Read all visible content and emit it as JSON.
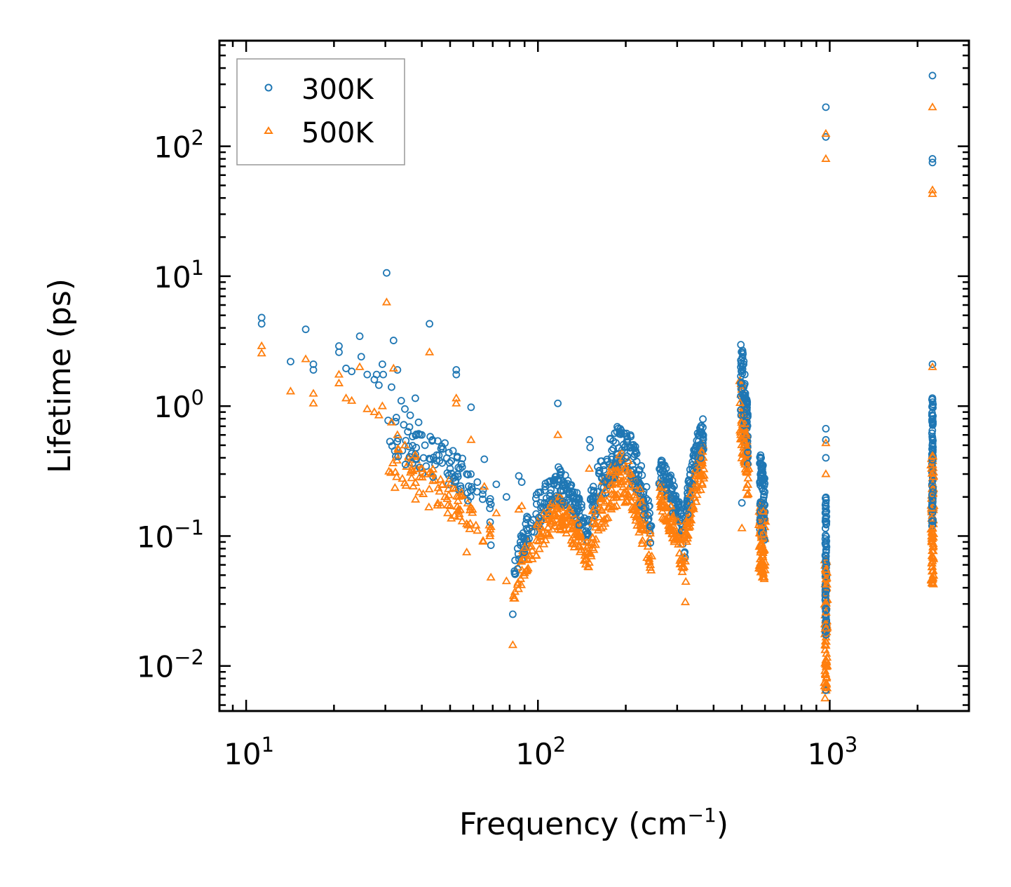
{
  "chart_data": {
    "type": "scatter",
    "title": "",
    "xlabel": "Frequency (cm",
    "xlabel_sup": "−1",
    "xlabel_close": ")",
    "ylabel": "Lifetime (ps)",
    "xscale": "log",
    "yscale": "log",
    "xlim": [
      8.1,
      3000
    ],
    "ylim": [
      0.0045,
      650
    ],
    "legend_position": "top-left",
    "x_ticks": [
      {
        "value": 10,
        "base": "10",
        "exp": "1"
      },
      {
        "value": 100,
        "base": "10",
        "exp": "2"
      },
      {
        "value": 1000,
        "base": "10",
        "exp": "3"
      }
    ],
    "y_ticks": [
      {
        "value": 0.01,
        "base": "10",
        "exp": "−2"
      },
      {
        "value": 0.1,
        "base": "10",
        "exp": "−1"
      },
      {
        "value": 1,
        "base": "10",
        "exp": "0"
      },
      {
        "value": 10,
        "base": "10",
        "exp": "1"
      },
      {
        "value": 100,
        "base": "10",
        "exp": "2"
      }
    ],
    "series": [
      {
        "name": "300K",
        "marker": "circle",
        "color": "#1f77b4",
        "points": [
          [
            11.3,
            4.8
          ],
          [
            11.3,
            4.3
          ],
          [
            14.2,
            2.2
          ],
          [
            16.0,
            3.9
          ],
          [
            17.0,
            2.1
          ],
          [
            17.0,
            1.9
          ],
          [
            20.8,
            2.9
          ],
          [
            20.8,
            2.6
          ],
          [
            22.0,
            1.95
          ],
          [
            23.0,
            1.85
          ],
          [
            24.5,
            3.45
          ],
          [
            24.8,
            2.4
          ],
          [
            26.0,
            1.75
          ],
          [
            27.5,
            1.6
          ],
          [
            28.0,
            1.75
          ],
          [
            28.5,
            1.45
          ],
          [
            29.3,
            2.1
          ],
          [
            29.5,
            1.75
          ],
          [
            30.3,
            10.6
          ],
          [
            31.5,
            1.4
          ],
          [
            32.0,
            3.2
          ],
          [
            33.0,
            1.9
          ],
          [
            34.0,
            1.1
          ],
          [
            35.0,
            0.95
          ],
          [
            36.5,
            0.85
          ],
          [
            38.0,
            1.15
          ],
          [
            39.0,
            0.75
          ],
          [
            40.0,
            0.6
          ],
          [
            41.0,
            0.5
          ],
          [
            42.5,
            4.3
          ],
          [
            43.5,
            0.55
          ],
          [
            45.0,
            0.42
          ],
          [
            46.0,
            0.38
          ],
          [
            48.0,
            0.52
          ],
          [
            50.0,
            0.33
          ],
          [
            51.5,
            0.28
          ],
          [
            52.5,
            1.9
          ],
          [
            52.5,
            1.75
          ],
          [
            55.0,
            0.34
          ],
          [
            57.0,
            0.3
          ],
          [
            59.0,
            0.98
          ],
          [
            62.0,
            0.26
          ],
          [
            65.5,
            0.39
          ],
          [
            69.0,
            0.085
          ],
          [
            72.0,
            0.25
          ],
          [
            78.0,
            0.2
          ],
          [
            82.0,
            0.025
          ],
          [
            83.5,
            0.065
          ],
          [
            86.0,
            0.29
          ],
          [
            88.0,
            0.26
          ],
          [
            117.0,
            1.05
          ],
          [
            150.0,
            0.55
          ],
          [
            151.0,
            0.48
          ],
          [
            500.0,
            0.18
          ],
          [
            970.0,
            0.0065
          ],
          [
            970.0,
            0.67
          ],
          [
            970.0,
            0.55
          ],
          [
            970.0,
            0.4
          ],
          [
            970.0,
            200
          ],
          [
            970.0,
            118
          ],
          [
            2250.0,
            350
          ],
          [
            2250.0,
            80
          ],
          [
            2250.0,
            75
          ],
          [
            2250.0,
            2.1
          ]
        ]
      },
      {
        "name": "500K",
        "marker": "triangle",
        "color": "#ff7f0e",
        "points": [
          [
            11.3,
            2.9
          ],
          [
            11.3,
            2.55
          ],
          [
            14.2,
            1.3
          ],
          [
            16.0,
            2.3
          ],
          [
            17.0,
            1.25
          ],
          [
            17.0,
            1.05
          ],
          [
            20.8,
            1.75
          ],
          [
            20.8,
            1.5
          ],
          [
            22.0,
            1.15
          ],
          [
            23.0,
            1.1
          ],
          [
            24.5,
            2.0
          ],
          [
            26.0,
            0.95
          ],
          [
            27.5,
            0.9
          ],
          [
            28.5,
            0.85
          ],
          [
            29.3,
            1.0
          ],
          [
            30.3,
            6.3
          ],
          [
            31.5,
            0.75
          ],
          [
            32.0,
            1.95
          ],
          [
            33.0,
            0.6
          ],
          [
            35.0,
            0.5
          ],
          [
            38.0,
            0.42
          ],
          [
            40.0,
            0.33
          ],
          [
            42.5,
            2.6
          ],
          [
            43.5,
            0.3
          ],
          [
            46.0,
            0.22
          ],
          [
            48.0,
            0.2
          ],
          [
            50.0,
            0.17
          ],
          [
            52.5,
            1.15
          ],
          [
            52.5,
            1.05
          ],
          [
            55.0,
            0.13
          ],
          [
            57.0,
            0.075
          ],
          [
            59.0,
            0.55
          ],
          [
            62.0,
            0.11
          ],
          [
            65.5,
            0.24
          ],
          [
            69.0,
            0.048
          ],
          [
            72.0,
            0.15
          ],
          [
            78.0,
            0.045
          ],
          [
            82.0,
            0.0145
          ],
          [
            86.0,
            0.16
          ],
          [
            88.0,
            0.17
          ],
          [
            117.0,
            0.6
          ],
          [
            150.0,
            0.33
          ],
          [
            320.0,
            0.031
          ],
          [
            500.0,
            0.115
          ],
          [
            590.0,
            0.048
          ],
          [
            970.0,
            0.0068
          ],
          [
            970.0,
            0.52
          ],
          [
            970.0,
            0.3
          ],
          [
            970.0,
            125
          ],
          [
            970.0,
            80
          ],
          [
            2250.0,
            200
          ],
          [
            2250.0,
            46
          ],
          [
            2250.0,
            43
          ],
          [
            2250.0,
            2.0
          ]
        ]
      }
    ],
    "clusters": [
      {
        "x0": 30,
        "x1": 70,
        "y_upper": [
          0.9,
          0.2
        ],
        "y_lower": [
          0.3,
          0.1
        ]
      },
      {
        "x0": 83,
        "x1": 118,
        "y_upper": [
          0.07,
          0.35
        ],
        "y_lower": [
          0.035,
          0.15
        ]
      },
      {
        "x0": 118,
        "x1": 150,
        "y_upper": [
          0.35,
          0.13
        ],
        "y_lower": [
          0.15,
          0.07
        ]
      },
      {
        "x0": 150,
        "x1": 195,
        "y_upper": [
          0.2,
          0.8
        ],
        "y_lower": [
          0.08,
          0.25
        ]
      },
      {
        "x0": 195,
        "x1": 245,
        "y_upper": [
          0.8,
          0.13
        ],
        "y_lower": [
          0.25,
          0.06
        ]
      },
      {
        "x0": 260,
        "x1": 320,
        "y_upper": [
          0.45,
          0.1
        ],
        "y_lower": [
          0.2,
          0.055
        ]
      },
      {
        "x0": 320,
        "x1": 370,
        "y_upper": [
          0.15,
          0.85
        ],
        "y_lower": [
          0.08,
          0.35
        ]
      },
      {
        "x0": 495,
        "x1": 525,
        "y_upper": [
          3.5,
          0.8
        ],
        "y_lower": [
          0.5,
          0.25
        ]
      },
      {
        "x0": 575,
        "x1": 600,
        "y_upper": [
          0.45,
          0.3
        ],
        "y_lower": [
          0.07,
          0.055
        ]
      },
      {
        "x0": 965,
        "x1": 975,
        "y_upper": [
          0.2,
          0.2
        ],
        "y_lower": [
          0.007,
          0.007
        ]
      },
      {
        "x0": 2240,
        "x1": 2260,
        "y_upper": [
          1.2,
          1.2
        ],
        "y_lower": [
          0.055,
          0.055
        ]
      }
    ]
  }
}
